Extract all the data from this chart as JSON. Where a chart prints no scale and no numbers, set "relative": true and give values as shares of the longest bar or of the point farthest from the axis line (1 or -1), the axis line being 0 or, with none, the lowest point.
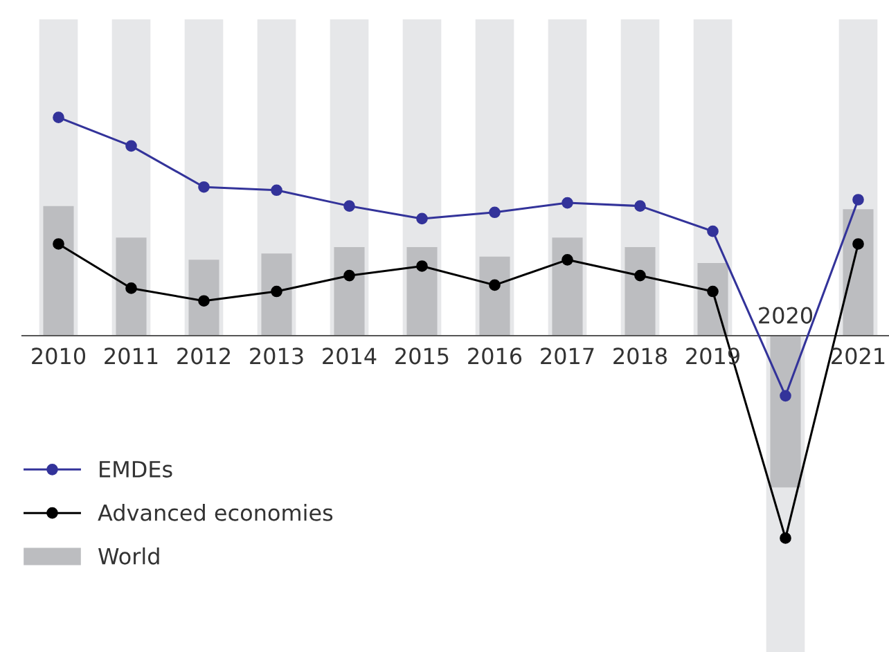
{
  "chart_data": {
    "type": "bar",
    "relative": true,
    "categories": [
      "2010",
      "2011",
      "2012",
      "2013",
      "2014",
      "2015",
      "2016",
      "2017",
      "2018",
      "2019",
      "2020",
      "2021"
    ],
    "series": [
      {
        "color": "#e6e7e9",
        "values": [
          1,
          1,
          1,
          1,
          1,
          1,
          1,
          1,
          1,
          1,
          -1,
          1
        ]
      },
      {
        "name": "World",
        "color": "#bcbdc0",
        "values": [
          0.41,
          0.31,
          0.24,
          0.26,
          0.28,
          0.28,
          0.25,
          0.31,
          0.28,
          0.23,
          -0.48,
          0.4
        ]
      },
      {
        "type": "line",
        "name": "EMDEs",
        "color": "#33339a",
        "values": [
          0.69,
          0.6,
          0.47,
          0.46,
          0.41,
          0.37,
          0.39,
          0.42,
          0.41,
          0.33,
          -0.19,
          0.43
        ]
      },
      {
        "type": "line",
        "name": "Advanced economies",
        "color": "#000000",
        "values": [
          0.29,
          0.15,
          0.11,
          0.14,
          0.19,
          0.22,
          0.16,
          0.24,
          0.19,
          0.14,
          -0.64,
          0.29
        ]
      }
    ],
    "marker": "circle",
    "legend": "bottom left"
  }
}
